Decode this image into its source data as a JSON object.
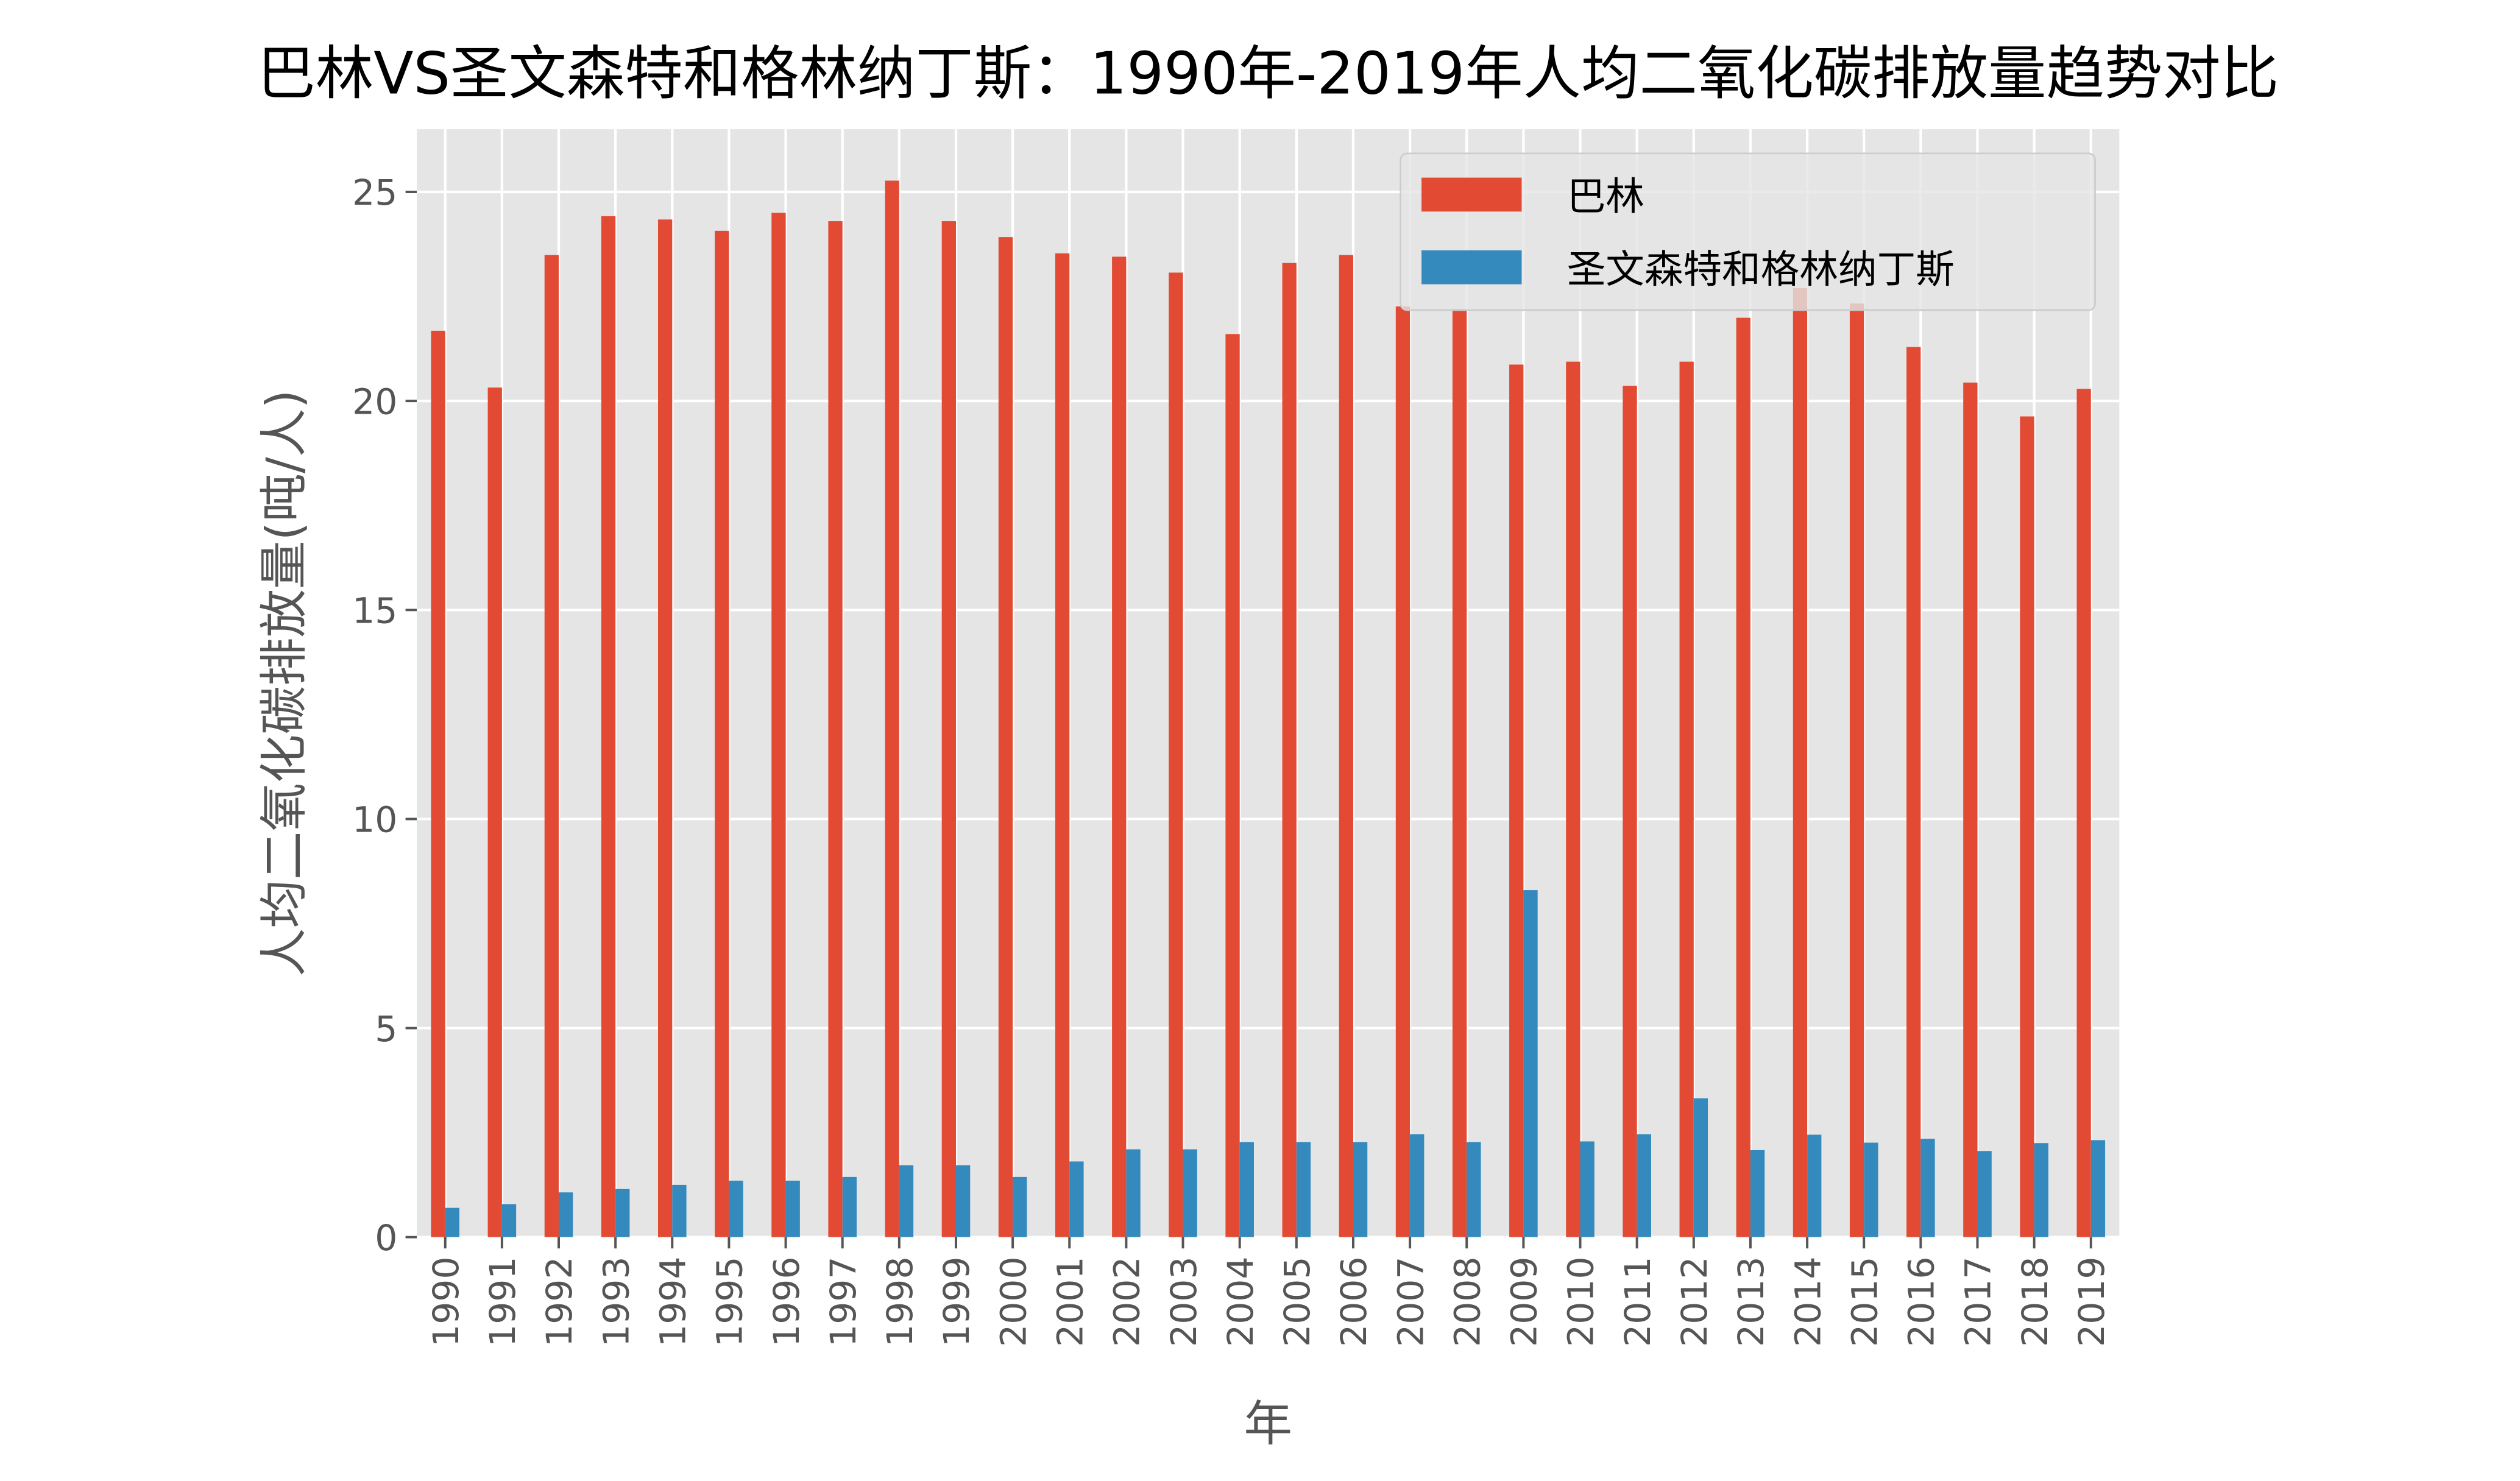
{
  "chart_data": {
    "type": "bar",
    "title": "巴林VS圣文森特和格林纳丁斯：1990年-2019年人均二氧化碳排放量趋势对比",
    "xlabel": "年",
    "ylabel": "人均二氧化碳排放量(吨/人)",
    "ylim": [
      0,
      26.5
    ],
    "yticks": [
      0,
      5,
      10,
      15,
      20,
      25
    ],
    "grid": true,
    "legend_position": "top-right",
    "categories": [
      "1990",
      "1991",
      "1992",
      "1993",
      "1994",
      "1995",
      "1996",
      "1997",
      "1998",
      "1999",
      "2000",
      "2001",
      "2002",
      "2003",
      "2004",
      "2005",
      "2006",
      "2007",
      "2008",
      "2009",
      "2010",
      "2011",
      "2012",
      "2013",
      "2014",
      "2015",
      "2016",
      "2017",
      "2018",
      "2019"
    ],
    "series": [
      {
        "name": "巴林",
        "color": "#E24A33",
        "values": [
          21.68,
          20.32,
          23.49,
          24.42,
          24.34,
          24.07,
          24.5,
          24.3,
          25.27,
          24.3,
          23.92,
          23.53,
          23.45,
          23.07,
          21.6,
          23.3,
          23.49,
          22.26,
          22.2,
          20.87,
          20.94,
          20.36,
          20.94,
          21.99,
          22.7,
          22.33,
          21.29,
          20.44,
          19.63,
          20.29
        ]
      },
      {
        "name": "圣文森特和格林纳丁斯",
        "color": "#348ABD",
        "values": [
          0.7,
          0.79,
          1.07,
          1.15,
          1.25,
          1.35,
          1.35,
          1.44,
          1.72,
          1.72,
          1.44,
          1.81,
          2.1,
          2.1,
          2.27,
          2.27,
          2.27,
          2.46,
          2.27,
          8.3,
          2.29,
          2.46,
          3.32,
          2.08,
          2.45,
          2.26,
          2.35,
          2.06,
          2.25,
          2.32
        ]
      }
    ]
  }
}
